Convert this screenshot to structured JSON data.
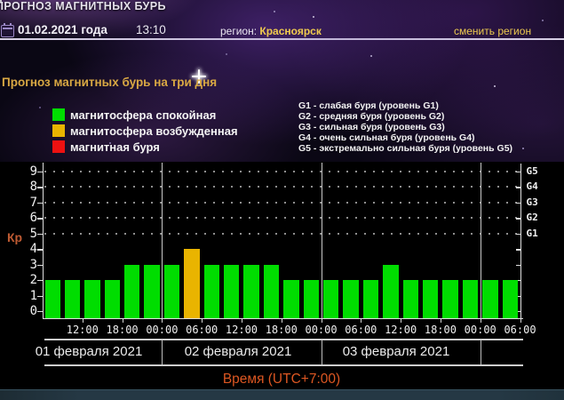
{
  "page_header": {
    "site_title": "ПРОГНОЗ МАГНИТНЫХ БУРЬ",
    "date": "01.02.2021 года",
    "time": "13:10",
    "region_label": "регион:",
    "region_value": "Красноярск",
    "change_region": "сменить регион"
  },
  "title": "Прогноз магнитных бурь на три дня",
  "legend": {
    "items": [
      {
        "label": "магнитосфера спокойная",
        "color": "#00dd00",
        "status": "quiet"
      },
      {
        "label": "магнитосфера возбужденная",
        "color": "#e9b400",
        "status": "excited"
      },
      {
        "label": "магнитная буря",
        "color": "#ee1111",
        "status": "storm"
      }
    ]
  },
  "g_scale_legend": [
    "G1 - слабая буря (уровень G1)",
    "G2 - средняя буря (уровень G2)",
    "G3 - сильная буря (уровень G3)",
    "G4 - очень сильная буря (уровень G4)",
    "G5 - экстремально сильная буря (уровень G5)"
  ],
  "chart_data": {
    "type": "bar",
    "title": "Прогноз магнитных бурь на три дня",
    "y_axis_label": "Кр",
    "x_axis_label": "Время (UTC+7:00)",
    "ylim": [
      0,
      9
    ],
    "y_ticks": [
      0,
      1,
      2,
      3,
      4,
      5,
      6,
      7,
      8,
      9
    ],
    "right_axis_ticks": [
      {
        "label": "G1",
        "kp": 5
      },
      {
        "label": "G2",
        "kp": 6
      },
      {
        "label": "G3",
        "kp": 7
      },
      {
        "label": "G4",
        "kp": 8
      },
      {
        "label": "G5",
        "kp": 9
      }
    ],
    "grid": "dotted at Kp 5-9",
    "interval_hours": 3,
    "time_start": "06:00",
    "x_tick_labels": [
      "12:00",
      "18:00",
      "00:00",
      "06:00",
      "12:00",
      "18:00",
      "00:00",
      "06:00",
      "12:00",
      "18:00",
      "00:00",
      "06:00"
    ],
    "date_groups": [
      {
        "label": "01 февраля 2021"
      },
      {
        "label": "02 февраля 2021"
      },
      {
        "label": "03 февраля 2021"
      }
    ],
    "values": [
      2,
      2,
      2,
      2,
      3,
      3,
      3,
      4,
      3,
      3,
      3,
      3,
      2,
      2,
      2,
      2,
      2,
      3,
      2,
      2,
      2,
      2,
      2,
      2
    ],
    "status_colors": {
      "quiet": "#00dd00",
      "excited": "#e9b400",
      "storm": "#ee1111"
    },
    "status_thresholds": {
      "quiet_max_kp": 3,
      "excited_kp": 4,
      "storm_min_kp": 5
    }
  }
}
